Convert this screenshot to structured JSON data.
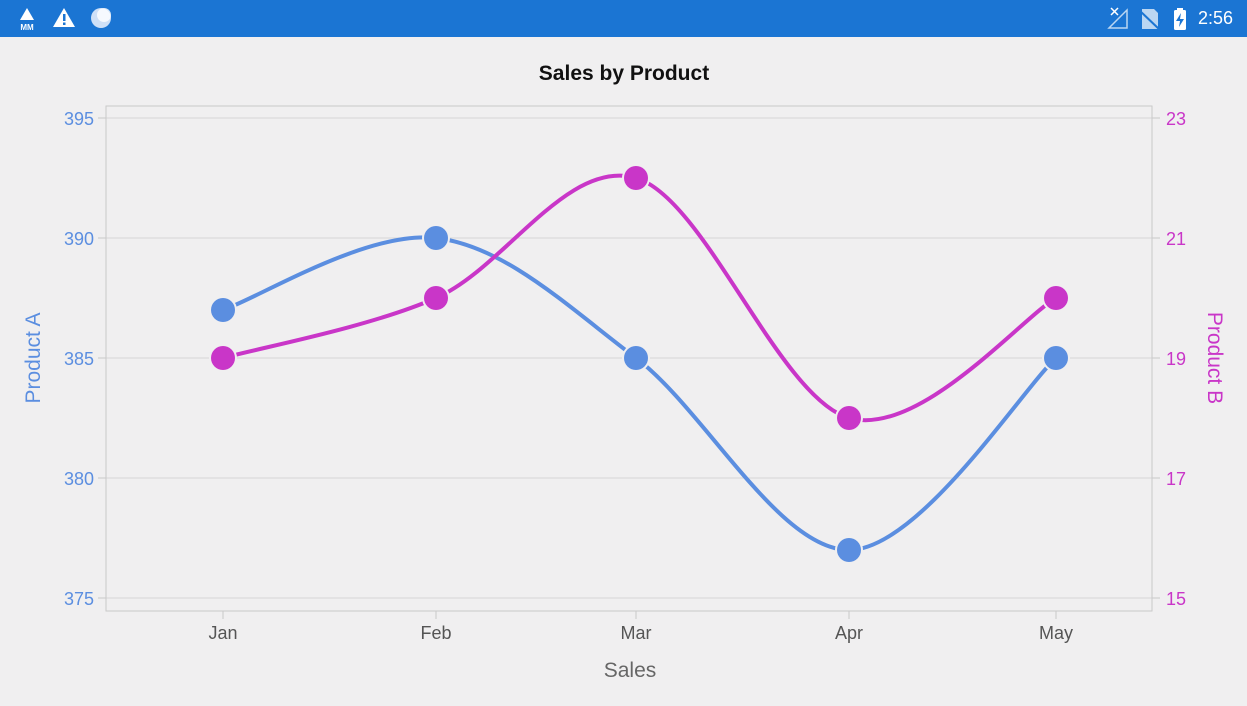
{
  "status_bar": {
    "time": "2:56",
    "left_icons": [
      "mm-notification-icon",
      "warning-icon",
      "sync-circle-icon"
    ],
    "right_icons": [
      "no-signal-icon",
      "no-sim-icon",
      "battery-charging-icon"
    ],
    "background": "#1b75d3"
  },
  "chart_data": {
    "type": "line",
    "title": "Sales by Product",
    "xlabel": "Sales",
    "categories": [
      "Jan",
      "Feb",
      "Mar",
      "Apr",
      "May"
    ],
    "series": [
      {
        "name": "Product A",
        "axis": "left",
        "color": "#5b8ee0",
        "values": [
          387,
          390,
          385,
          377,
          385
        ]
      },
      {
        "name": "Product B",
        "axis": "right",
        "color": "#c936c8",
        "values": [
          19,
          20,
          22,
          18,
          20
        ]
      }
    ],
    "y_left": {
      "label": "Product A",
      "min": 375,
      "max": 395,
      "ticks": [
        "375",
        "380",
        "385",
        "390",
        "395"
      ],
      "color": "#5b8ee0"
    },
    "y_right": {
      "label": "Product B",
      "min": 15,
      "max": 23,
      "ticks": [
        "15",
        "17",
        "19",
        "21",
        "23"
      ],
      "color": "#c936c8"
    },
    "grid": true,
    "curve": "spline"
  }
}
